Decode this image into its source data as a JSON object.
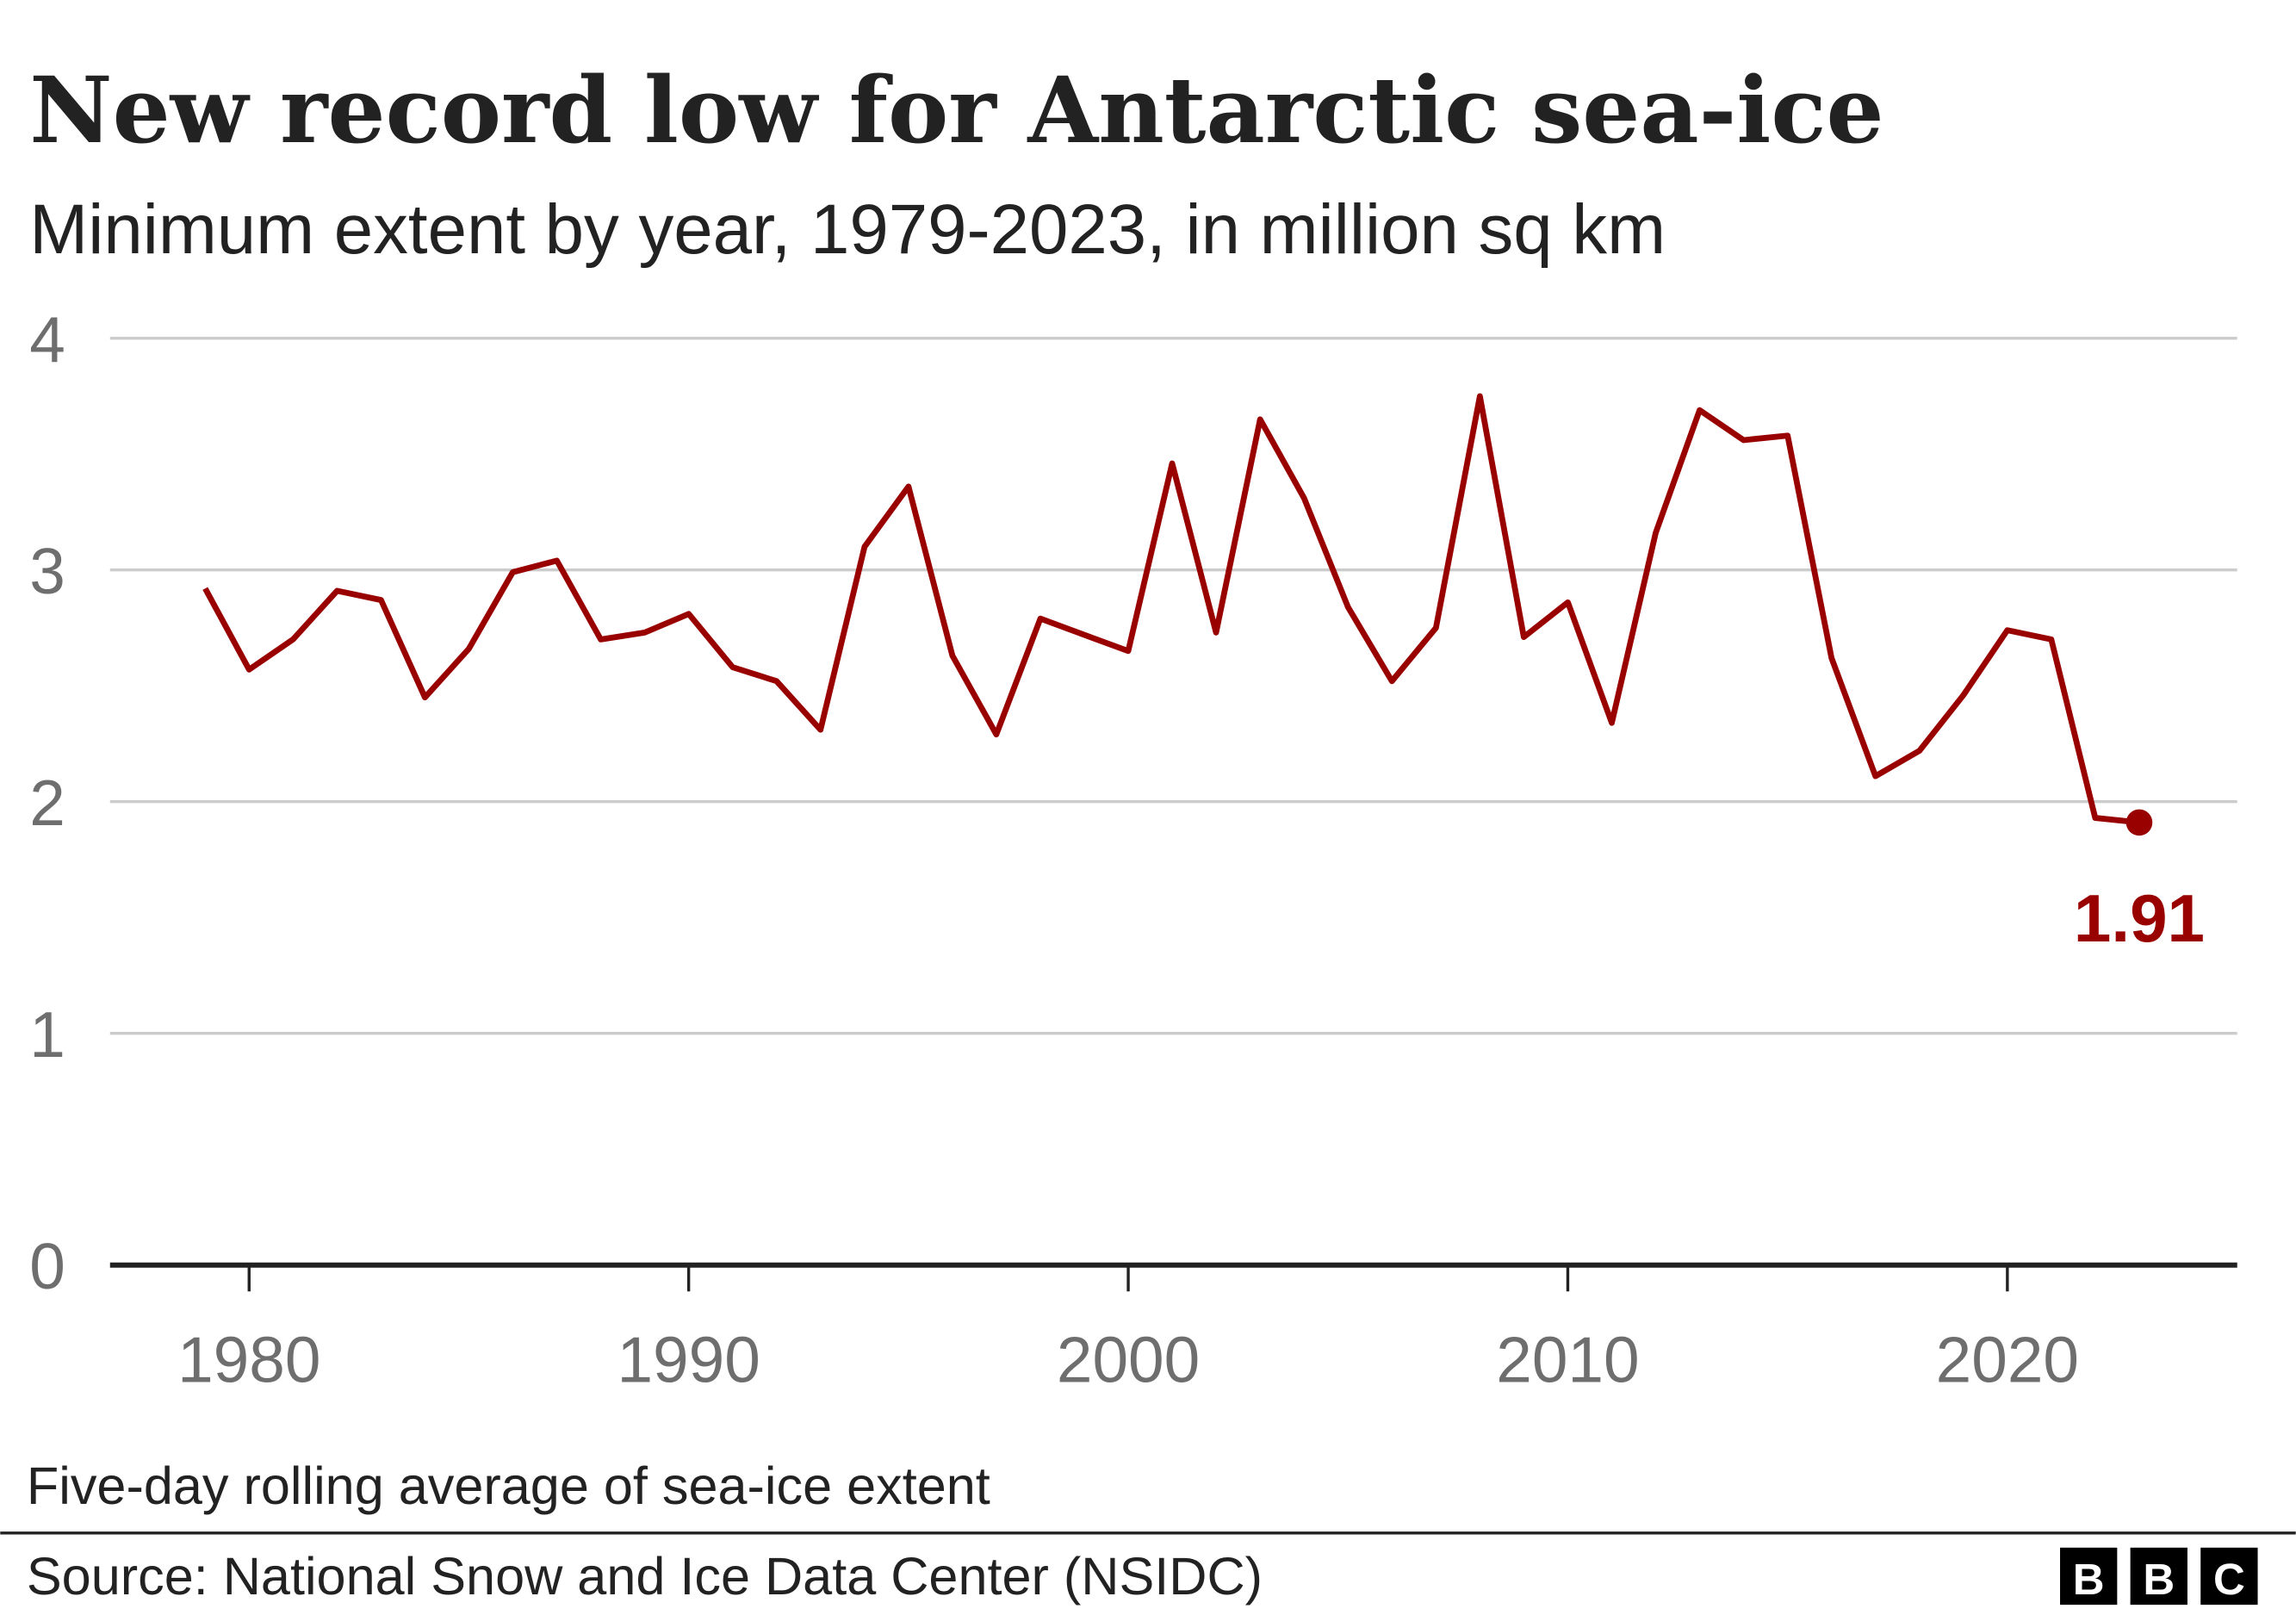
{
  "title": "New record low for Antarctic sea-ice",
  "subtitle": "Minimum extent by year, 1979-2023, in million sq km",
  "footnote": "Five-day rolling average of sea-ice extent",
  "source": "Source: National Snow and Ice Data Center (NSIDC)",
  "logo": {
    "letters": [
      "B",
      "B",
      "C"
    ]
  },
  "colors": {
    "line": "#990000",
    "grid": "#cccccc",
    "axis": "#222222",
    "tick_text": "#6e6e6e"
  },
  "chart_data": {
    "type": "line",
    "title": "New record low for Antarctic sea-ice",
    "subtitle": "Minimum extent by year, 1979-2023, in million sq km",
    "xlabel": "",
    "ylabel": "",
    "xlim": [
      1976,
      2025
    ],
    "ylim": [
      0,
      4
    ],
    "xticks": [
      1980,
      1990,
      2000,
      2010,
      2020
    ],
    "yticks": [
      0,
      1,
      2,
      3,
      4
    ],
    "grid": true,
    "x": [
      1979,
      1980,
      1981,
      1982,
      1983,
      1984,
      1985,
      1986,
      1987,
      1988,
      1989,
      1990,
      1991,
      1992,
      1993,
      1994,
      1995,
      1996,
      1997,
      1998,
      1999,
      2000,
      2001,
      2002,
      2003,
      2004,
      2005,
      2006,
      2007,
      2008,
      2009,
      2010,
      2011,
      2012,
      2013,
      2014,
      2015,
      2016,
      2017,
      2018,
      2019,
      2020,
      2021,
      2022,
      2023
    ],
    "values": [
      2.92,
      2.57,
      2.7,
      2.91,
      2.87,
      2.45,
      2.66,
      2.99,
      3.04,
      2.7,
      2.73,
      2.81,
      2.58,
      2.52,
      2.31,
      3.1,
      3.36,
      2.63,
      2.29,
      2.79,
      2.72,
      2.65,
      3.46,
      2.73,
      3.65,
      3.31,
      2.84,
      2.52,
      2.75,
      3.75,
      2.71,
      2.86,
      2.34,
      3.16,
      3.69,
      3.56,
      3.58,
      2.62,
      2.11,
      2.22,
      2.46,
      2.74,
      2.7,
      1.93,
      1.91
    ],
    "annotation": {
      "x": 2023,
      "y": 1.91,
      "label": "1.91"
    }
  }
}
